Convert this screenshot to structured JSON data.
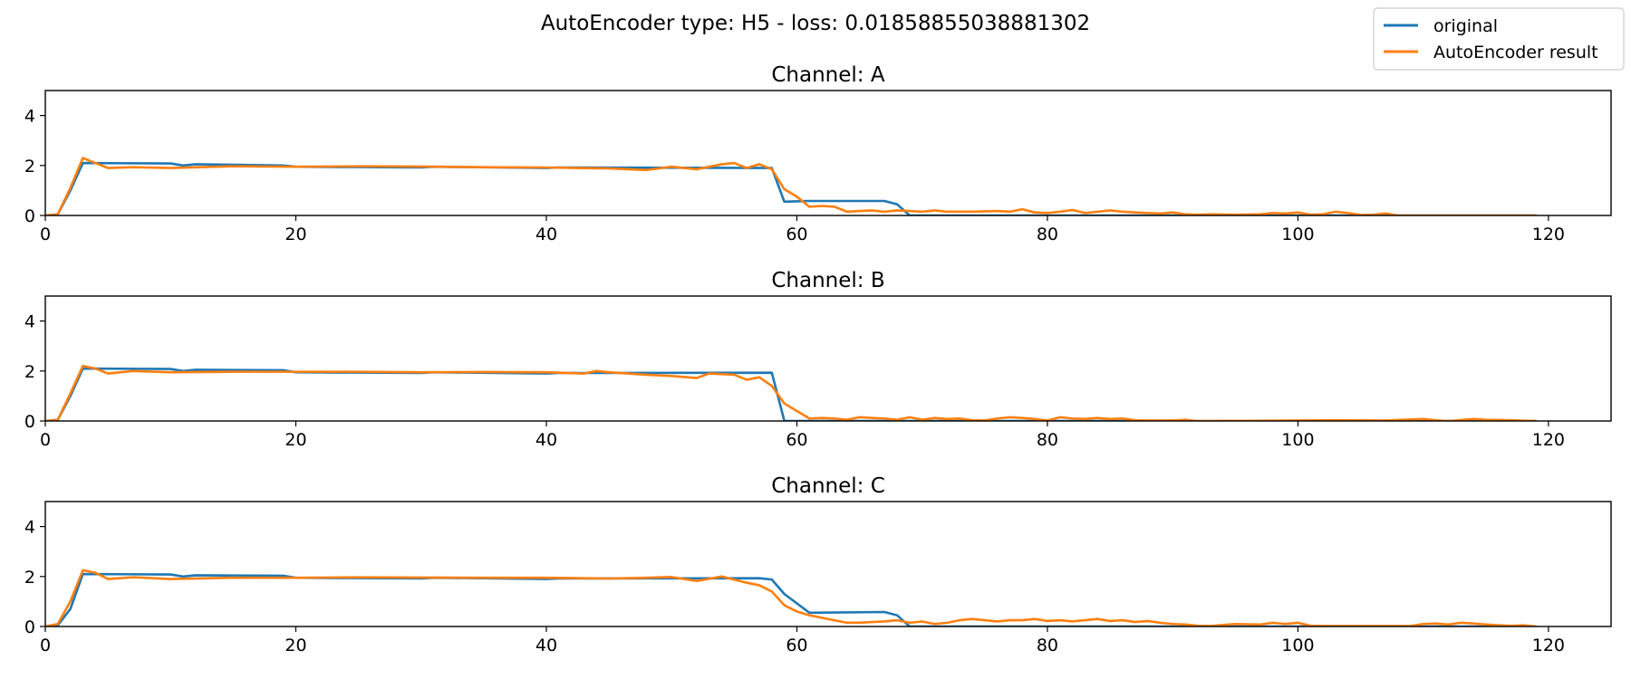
{
  "chart_data": {
    "type": "line",
    "title": "AutoEncoder type: H5 - loss: 0.01858855038881302",
    "legend": {
      "placement": "top-right",
      "entries": [
        "original",
        "AutoEncoder result"
      ]
    },
    "colors": {
      "original": "#1f77b4",
      "AutoEncoder result": "#ff7f0e"
    },
    "xlim": [
      0,
      125
    ],
    "ylim": [
      0,
      5
    ],
    "xticks": [
      0,
      20,
      40,
      60,
      80,
      100,
      120
    ],
    "yticks": [
      0,
      2,
      4
    ],
    "grid": false,
    "panels": [
      {
        "title": "Channel: A",
        "series": [
          {
            "name": "original",
            "x": [
              0,
              1,
              2,
              3,
              10,
              11,
              12,
              19,
              20,
              30,
              31,
              40,
              41,
              58,
              59,
              61,
              67,
              68,
              69,
              119
            ],
            "y": [
              0,
              0.05,
              1.0,
              2.1,
              2.08,
              2.0,
              2.05,
              2.0,
              1.95,
              1.92,
              1.95,
              1.9,
              1.92,
              1.9,
              0.55,
              0.58,
              0.58,
              0.45,
              0,
              0
            ]
          },
          {
            "name": "AutoEncoder result",
            "x": [
              0,
              1,
              2,
              3,
              4,
              5,
              7,
              10,
              15,
              20,
              25,
              30,
              35,
              40,
              45,
              48,
              50,
              52,
              54,
              55,
              56,
              57,
              58,
              59,
              60,
              61,
              62,
              63,
              64,
              65,
              66,
              67,
              68,
              69,
              70,
              71,
              72,
              74,
              76,
              77,
              78,
              79,
              80,
              81,
              82,
              83,
              84,
              85,
              86,
              87,
              88,
              89,
              90,
              91,
              92,
              93,
              95,
              97,
              98,
              99,
              100,
              101,
              102,
              103,
              104,
              105,
              106,
              107,
              108,
              119
            ],
            "y": [
              0,
              0.05,
              1.1,
              2.3,
              2.1,
              1.9,
              1.93,
              1.9,
              1.97,
              1.95,
              1.97,
              1.96,
              1.93,
              1.92,
              1.88,
              1.82,
              1.95,
              1.85,
              2.05,
              2.1,
              1.9,
              2.05,
              1.85,
              1.05,
              0.75,
              0.35,
              0.38,
              0.35,
              0.15,
              0.18,
              0.2,
              0.15,
              0.2,
              0.18,
              0.15,
              0.2,
              0.15,
              0.15,
              0.18,
              0.15,
              0.25,
              0.12,
              0.1,
              0.15,
              0.22,
              0.1,
              0.15,
              0.2,
              0.15,
              0.12,
              0.1,
              0.08,
              0.12,
              0.05,
              0.03,
              0.05,
              0.03,
              0.05,
              0.1,
              0.08,
              0.12,
              0.03,
              0.05,
              0.15,
              0.1,
              0.02,
              0.03,
              0.08,
              0,
              0
            ]
          }
        ]
      },
      {
        "title": "Channel: B",
        "series": [
          {
            "name": "original",
            "x": [
              0,
              1,
              2,
              3,
              10,
              11,
              12,
              19,
              20,
              30,
              31,
              40,
              41,
              58,
              59,
              119
            ],
            "y": [
              0,
              0.05,
              1.0,
              2.1,
              2.08,
              2.0,
              2.05,
              2.03,
              1.95,
              1.92,
              1.95,
              1.9,
              1.92,
              1.93,
              0,
              0
            ]
          },
          {
            "name": "AutoEncoder result",
            "x": [
              0,
              1,
              2,
              3,
              4,
              5,
              7,
              10,
              15,
              20,
              25,
              30,
              35,
              40,
              43,
              44,
              45,
              48,
              50,
              52,
              53,
              55,
              56,
              57,
              58,
              59,
              60,
              61,
              62,
              63,
              64,
              65,
              66,
              67,
              68,
              69,
              70,
              71,
              72,
              73,
              74,
              75,
              76,
              77,
              78,
              79,
              80,
              81,
              82,
              83,
              84,
              85,
              86,
              87,
              88,
              90,
              91,
              92,
              100,
              103,
              107,
              110,
              111,
              112,
              114,
              115,
              117,
              119
            ],
            "y": [
              0,
              0.05,
              1.1,
              2.2,
              2.1,
              1.9,
              2.0,
              1.95,
              1.97,
              1.97,
              1.97,
              1.95,
              1.96,
              1.95,
              1.9,
              2.0,
              1.95,
              1.85,
              1.8,
              1.72,
              1.9,
              1.85,
              1.65,
              1.75,
              1.4,
              0.7,
              0.4,
              0.1,
              0.12,
              0.1,
              0.05,
              0.15,
              0.12,
              0.1,
              0.05,
              0.15,
              0.05,
              0.12,
              0.08,
              0.1,
              0.03,
              0.02,
              0.1,
              0.15,
              0.12,
              0.08,
              0.02,
              0.15,
              0.1,
              0.08,
              0.12,
              0.08,
              0.1,
              0.03,
              0.02,
              0.02,
              0.05,
              0,
              0.02,
              0.03,
              0.02,
              0.08,
              0.03,
              0,
              0.08,
              0.05,
              0.03,
              0
            ]
          }
        ]
      },
      {
        "title": "Channel: C",
        "series": [
          {
            "name": "original",
            "x": [
              0,
              1,
              2,
              3,
              10,
              11,
              12,
              19,
              20,
              30,
              31,
              40,
              41,
              57,
              58,
              59,
              61,
              67,
              68,
              69,
              119
            ],
            "y": [
              0,
              0.05,
              0.7,
              2.1,
              2.08,
              2.0,
              2.05,
              2.03,
              1.95,
              1.92,
              1.95,
              1.9,
              1.92,
              1.93,
              1.88,
              1.3,
              0.55,
              0.58,
              0.45,
              0,
              0
            ]
          },
          {
            "name": "AutoEncoder result",
            "x": [
              0,
              1,
              2,
              3,
              4,
              5,
              7,
              10,
              15,
              20,
              25,
              30,
              35,
              40,
              45,
              48,
              50,
              52,
              54,
              56,
              57,
              58,
              59,
              60,
              61,
              62,
              63,
              64,
              65,
              66,
              67,
              68,
              69,
              70,
              71,
              72,
              73,
              74,
              75,
              76,
              77,
              78,
              79,
              80,
              81,
              82,
              83,
              84,
              85,
              86,
              87,
              88,
              89,
              90,
              91,
              92,
              93,
              95,
              97,
              98,
              99,
              100,
              101,
              102,
              109,
              110,
              111,
              112,
              113,
              114,
              115,
              116,
              117,
              118,
              119
            ],
            "y": [
              0,
              0.1,
              1.0,
              2.25,
              2.15,
              1.9,
              1.97,
              1.9,
              1.95,
              1.95,
              1.97,
              1.96,
              1.95,
              1.95,
              1.92,
              1.95,
              1.98,
              1.82,
              2.0,
              1.75,
              1.65,
              1.4,
              0.85,
              0.6,
              0.45,
              0.35,
              0.25,
              0.15,
              0.15,
              0.18,
              0.2,
              0.25,
              0.15,
              0.2,
              0.1,
              0.15,
              0.25,
              0.3,
              0.25,
              0.2,
              0.25,
              0.25,
              0.3,
              0.22,
              0.25,
              0.2,
              0.25,
              0.3,
              0.22,
              0.25,
              0.18,
              0.22,
              0.15,
              0.1,
              0.08,
              0.03,
              0.02,
              0.1,
              0.08,
              0.15,
              0.1,
              0.15,
              0.03,
              0.02,
              0.02,
              0.1,
              0.12,
              0.08,
              0.15,
              0.12,
              0.08,
              0.05,
              0.03,
              0.05,
              0
            ]
          }
        ]
      }
    ]
  }
}
